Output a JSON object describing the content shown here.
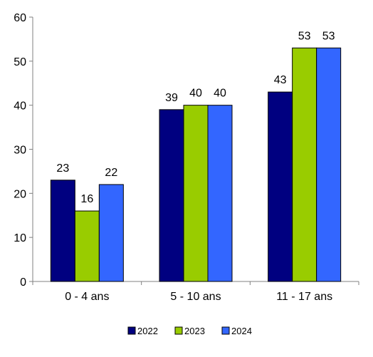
{
  "chart_data": {
    "type": "bar",
    "categories": [
      "0 - 4 ans",
      "5 - 10 ans",
      "11 - 17 ans"
    ],
    "series": [
      {
        "name": "2022",
        "values": [
          23,
          39,
          43
        ],
        "color": "#000080"
      },
      {
        "name": "2023",
        "values": [
          16,
          40,
          53
        ],
        "color": "#99CC00"
      },
      {
        "name": "2024",
        "values": [
          22,
          40,
          53
        ],
        "color": "#3366FF"
      }
    ],
    "ylim": [
      0,
      60
    ],
    "yticks": [
      0,
      10,
      20,
      30,
      40,
      50,
      60
    ],
    "title": "",
    "xlabel": "",
    "ylabel": "",
    "legend_position": "bottom",
    "grid": false,
    "bar_outline_color": "#000000",
    "axis_color": "#808080"
  }
}
